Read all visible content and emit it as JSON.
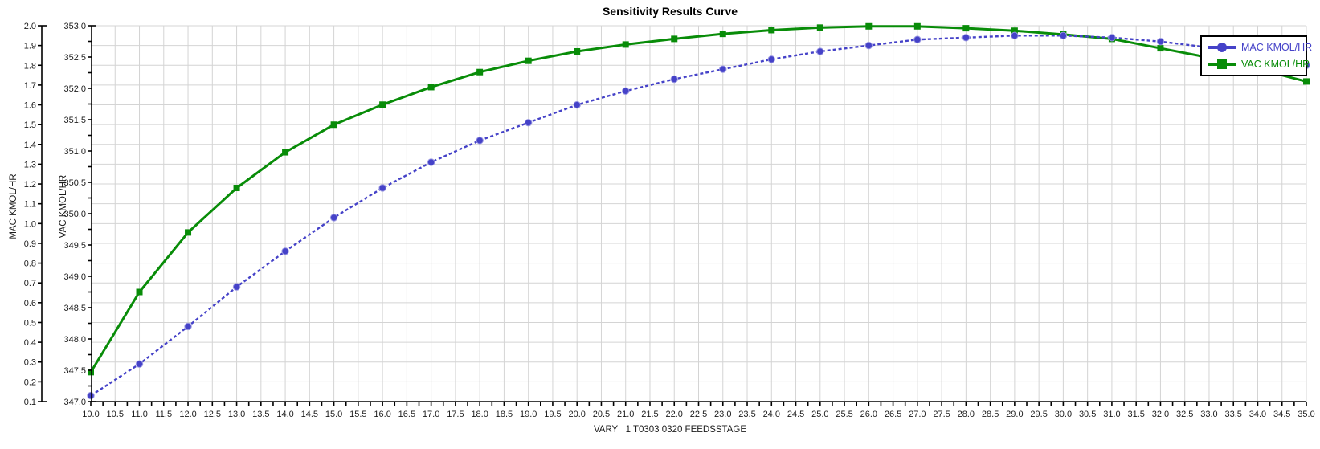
{
  "title": "Sensitivity Results Curve",
  "x_axis": {
    "label": "VARY   1 T0303 0320 FEEDSSTAGE",
    "min": 10.0,
    "max": 35.0,
    "minor_tick_step": 0.25,
    "label_step": 0.5,
    "tick_labels": [
      "10.0",
      "10.5",
      "11.0",
      "11.5",
      "12.0",
      "12.5",
      "13.0",
      "13.5",
      "14.0",
      "14.5",
      "15.0",
      "15.5",
      "16.0",
      "16.5",
      "17.0",
      "17.5",
      "18.0",
      "18.5",
      "19.0",
      "19.5",
      "20.0",
      "20.5",
      "21.0",
      "21.5",
      "22.0",
      "22.5",
      "23.0",
      "23.5",
      "24.0",
      "24.5",
      "25.0",
      "25.5",
      "26.0",
      "26.5",
      "27.0",
      "27.5",
      "28.0",
      "28.5",
      "29.0",
      "29.5",
      "30.0",
      "30.5",
      "31.0",
      "31.5",
      "32.0",
      "32.5",
      "33.0",
      "33.5",
      "34.0",
      "34.5",
      "35.0"
    ]
  },
  "mac_axis": {
    "label": "MAC KMOL/HR",
    "min": 0.1,
    "max": 2.0,
    "tick_step": 0.1,
    "tick_labels": [
      "2.0",
      "1.9",
      "1.8",
      "1.7",
      "1.6",
      "1.5",
      "1.4",
      "1.3",
      "1.2",
      "1.1",
      "1.0",
      "0.9",
      "0.8",
      "0.7",
      "0.6",
      "0.5",
      "0.4",
      "0.3",
      "0.2",
      "0.1"
    ]
  },
  "vac_axis": {
    "label": "VAC KMOL/HR",
    "min": 347.0,
    "max": 353.0,
    "minor_tick_step": 0.25,
    "label_step": 0.5,
    "tick_labels": [
      "353.0",
      "352.5",
      "352.0",
      "351.5",
      "351.0",
      "350.5",
      "350.0",
      "349.5",
      "349.0",
      "348.5",
      "348.0",
      "347.5",
      "347.0"
    ]
  },
  "legend": [
    {
      "label": "MAC KMOL/HR",
      "color": "#4542C8",
      "marker": "circle"
    },
    {
      "label": "VAC KMOL/HR",
      "color": "#088C08",
      "marker": "square"
    }
  ],
  "chart_data": {
    "type": "line",
    "title": "Sensitivity Results Curve",
    "xlabel": "VARY   1 T0303 0320 FEEDSSTAGE",
    "xlim": [
      10,
      35
    ],
    "grid": true,
    "legend_position": "top-right",
    "x": [
      10,
      11,
      12,
      13,
      14,
      15,
      16,
      17,
      18,
      19,
      20,
      21,
      22,
      23,
      24,
      25,
      26,
      27,
      28,
      29,
      30,
      31,
      32,
      33,
      34,
      35
    ],
    "series": [
      {
        "name": "MAC KMOL/HR",
        "axis": "mac",
        "ylim": [
          0.1,
          2.0
        ],
        "color": "#4542C8",
        "line_style": "dashed",
        "marker": "circle",
        "values": [
          0.13,
          0.29,
          0.48,
          0.68,
          0.86,
          1.03,
          1.18,
          1.31,
          1.42,
          1.51,
          1.6,
          1.67,
          1.73,
          1.78,
          1.83,
          1.87,
          1.9,
          1.93,
          1.94,
          1.95,
          1.95,
          1.94,
          1.92,
          1.89,
          1.85,
          1.8
        ]
      },
      {
        "name": "VAC KMOL/HR",
        "axis": "vac",
        "ylim": [
          347.0,
          353.0
        ],
        "color": "#088C08",
        "line_style": "solid",
        "marker": "square",
        "values": [
          347.47,
          348.75,
          349.7,
          350.41,
          350.98,
          351.42,
          351.74,
          352.02,
          352.26,
          352.44,
          352.59,
          352.7,
          352.79,
          352.87,
          352.93,
          352.97,
          352.99,
          352.99,
          352.96,
          352.92,
          352.86,
          352.79,
          352.64,
          352.49,
          352.31,
          352.11
        ]
      }
    ]
  },
  "colors": {
    "background": "#ffffff",
    "grid": "#d4d4d4",
    "axis": "#000000",
    "tick_text": "#1c1c1c",
    "mac_series": "#4542C8",
    "vac_series": "#088C08"
  }
}
